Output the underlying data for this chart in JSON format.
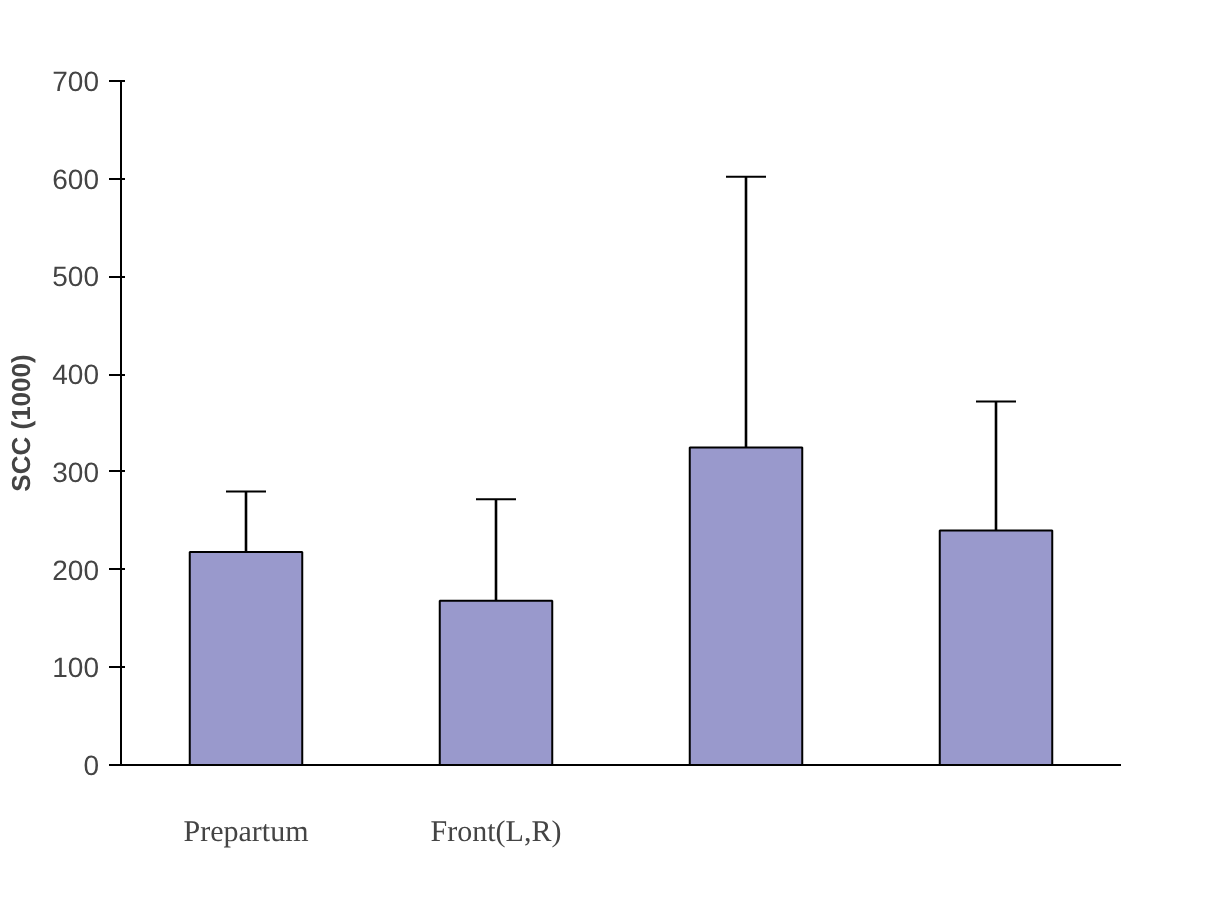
{
  "chart_data": {
    "type": "bar",
    "ylabel": "SCC (1000)",
    "categories": [
      "Prepartum",
      "Front(L,R)",
      null,
      null
    ],
    "values": [
      218,
      168,
      325,
      240
    ],
    "color": "#9999cc",
    "errors": [
      [
        218,
        280
      ],
      [
        168,
        272
      ],
      [
        325,
        602
      ],
      [
        240,
        372
      ]
    ],
    "ylim": [
      0,
      700
    ],
    "yticks": [
      0,
      100,
      200,
      300,
      400,
      500,
      600,
      700
    ],
    "grid": false
  }
}
